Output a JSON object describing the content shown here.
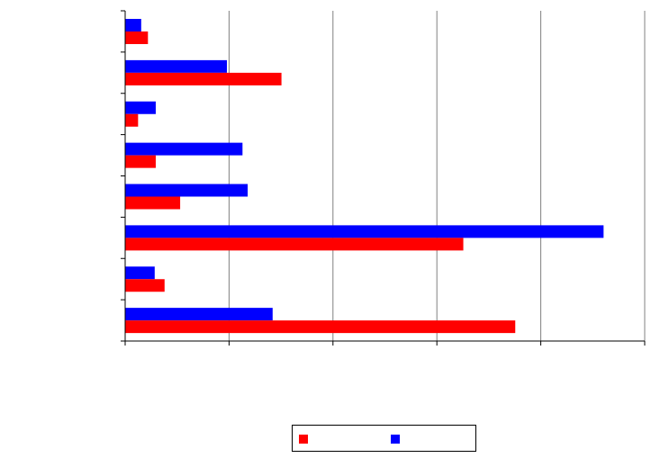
{
  "chart_data": {
    "type": "bar",
    "orientation": "horizontal",
    "categories": [
      "",
      "",
      "",
      "",
      "",
      "",
      "",
      ""
    ],
    "series": [
      {
        "values": [
          0.3,
          1.95,
          0.58,
          2.25,
          2.35,
          9.2,
          0.56,
          2.83
        ],
        "color": "#0000ff"
      },
      {
        "values": [
          0.43,
          3.0,
          0.24,
          0.58,
          1.05,
          6.5,
          0.75,
          7.5
        ],
        "color": "#ff0000"
      }
    ],
    "xlim": [
      0,
      10
    ],
    "xtick_values": [
      0,
      2,
      4,
      6,
      8,
      10
    ],
    "grid": "vertical lines",
    "legend_placement": "bottom"
  },
  "legend": {
    "items": [
      {
        "label": "",
        "color": "#ff0000"
      },
      {
        "label": "",
        "color": "#0000ff"
      }
    ]
  }
}
